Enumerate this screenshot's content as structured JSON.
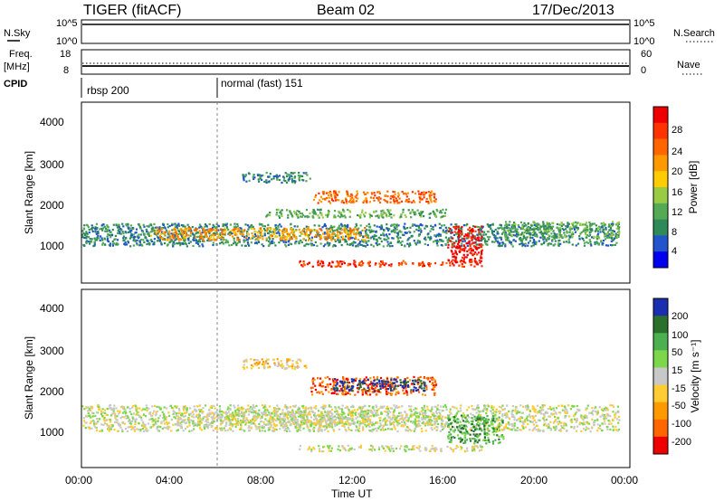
{
  "header": {
    "radar": "TIGER (fitACF)",
    "beam": "Beam 02",
    "date": "17/Dec/2013"
  },
  "strips": {
    "nsky": {
      "label": "N.Sky",
      "ticks_left": [
        "10^5",
        "10^0"
      ],
      "right_label": "N.Search",
      "ticks_right": [
        "10^5",
        "10^0"
      ]
    },
    "freq": {
      "label_line1": "Freq.",
      "label_line2": "[MHz]",
      "ticks_left": [
        "18",
        "8"
      ],
      "right_label": "Nave",
      "ticks_right": [
        "60",
        "0"
      ]
    },
    "cpid": {
      "label": "CPID",
      "segments": [
        {
          "start_hour": 0,
          "text": "rbsp 200"
        },
        {
          "start_hour": 6,
          "text": "normal (fast) 151"
        }
      ]
    }
  },
  "power_panel": {
    "ylabel": "Slant Range [km]",
    "yticks": [
      "4000",
      "3000",
      "2000",
      "1000"
    ],
    "colorbar_label": "Power [dB]",
    "colorbar_ticks": [
      "28",
      "24",
      "20",
      "16",
      "12",
      "8",
      "4"
    ],
    "colors": [
      "#0000ee",
      "#2255cc",
      "#2e8b57",
      "#55aa55",
      "#99cc44",
      "#ffcc00",
      "#ff9900",
      "#ff6600",
      "#ff3300",
      "#ee0000"
    ]
  },
  "velocity_panel": {
    "ylabel": "Slant Range [km]",
    "yticks": [
      "4000",
      "3000",
      "2000",
      "1000"
    ],
    "colorbar_label": "Velocity [m s⁻¹]",
    "colorbar_ticks": [
      "200",
      "100",
      "50",
      "15",
      "-15",
      "-50",
      "-100",
      "-200"
    ],
    "colors": [
      "#1a2fb0",
      "#2a6f2a",
      "#4caf50",
      "#7cd84a",
      "#c8c8c8",
      "#ffcc33",
      "#ff9900",
      "#ff6600",
      "#ee0000"
    ]
  },
  "x_axis": {
    "label": "Time UT",
    "ticks": [
      "00:00",
      "04:00",
      "08:00",
      "12:00",
      "16:00",
      "20:00",
      "00:00"
    ]
  },
  "chart_data": {
    "type": "heatmap",
    "x_range_hours": [
      0,
      24
    ],
    "y_range_km": [
      180,
      4600
    ],
    "marker_hour": 6,
    "power_features": [
      {
        "t0": 0.0,
        "t1": 23.5,
        "r0": 1100,
        "r1": 1650,
        "level": 2
      },
      {
        "t0": 3.0,
        "t1": 12.5,
        "r0": 1250,
        "r1": 1550,
        "level": 6
      },
      {
        "t0": 8.0,
        "t1": 16.0,
        "r0": 1800,
        "r1": 2000,
        "level": 3
      },
      {
        "t0": 10.0,
        "t1": 15.5,
        "r0": 2150,
        "r1": 2450,
        "level": 7
      },
      {
        "t0": 9.5,
        "t1": 17.5,
        "r0": 600,
        "r1": 750,
        "level": 8
      },
      {
        "t0": 16.0,
        "t1": 17.5,
        "r0": 700,
        "r1": 1600,
        "level": 9
      },
      {
        "t0": 18.5,
        "t1": 23.5,
        "r0": 1300,
        "r1": 1700,
        "level": 3
      },
      {
        "t0": 7.0,
        "t1": 10.0,
        "r0": 2650,
        "r1": 2900,
        "level": 2
      }
    ],
    "velocity_features": [
      {
        "t0": 0.0,
        "t1": 23.5,
        "r0": 1100,
        "r1": 1750,
        "level": 4
      },
      {
        "t0": 4.0,
        "t1": 16.0,
        "r0": 1250,
        "r1": 1600,
        "level": 4
      },
      {
        "t0": 9.5,
        "t1": 17.5,
        "r0": 600,
        "r1": 750,
        "level": 4
      },
      {
        "t0": 10.0,
        "t1": 15.5,
        "r0": 2000,
        "r1": 2450,
        "level": 7
      },
      {
        "t0": 11.0,
        "t1": 15.0,
        "r0": 2100,
        "r1": 2400,
        "level": 0
      },
      {
        "t0": 16.0,
        "t1": 18.5,
        "r0": 800,
        "r1": 1500,
        "level": 2
      },
      {
        "t0": 7.0,
        "t1": 10.0,
        "r0": 2650,
        "r1": 2900,
        "level": 5
      }
    ]
  }
}
